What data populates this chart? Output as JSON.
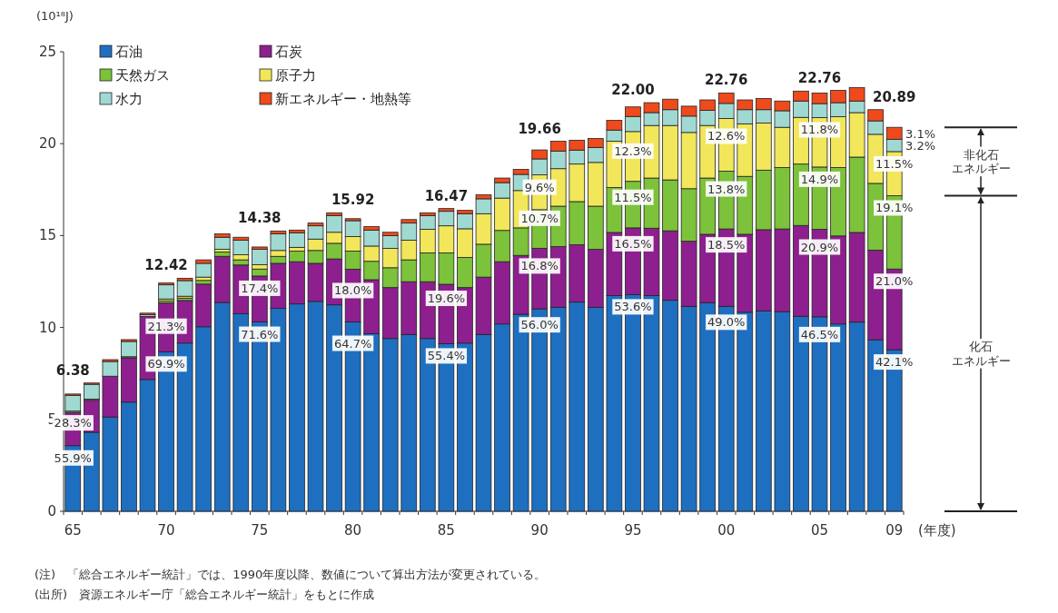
{
  "chart_data": {
    "type": "bar",
    "stacked": true,
    "ylabel": "(10¹⁸J)",
    "xlabel": "(年度)",
    "legend": "top left",
    "ylim": [
      0,
      25
    ],
    "yticks": [
      0,
      5,
      10,
      15,
      20,
      25
    ],
    "categories": [
      "65",
      null,
      null,
      null,
      null,
      "70",
      null,
      null,
      null,
      null,
      "75",
      null,
      null,
      null,
      null,
      "80",
      null,
      null,
      null,
      null,
      "85",
      null,
      null,
      null,
      null,
      "90",
      null,
      null,
      null,
      null,
      "95",
      null,
      null,
      null,
      null,
      "00",
      null,
      null,
      null,
      null,
      "05",
      null,
      null,
      null,
      "09"
    ],
    "series": [
      {
        "name": "石油",
        "color": "#1f6fc0",
        "values": [
          3.57,
          4.3,
          5.13,
          5.94,
          7.17,
          8.68,
          9.15,
          10.04,
          11.36,
          10.75,
          10.3,
          11.04,
          11.28,
          11.42,
          11.23,
          10.3,
          9.66,
          9.4,
          9.62,
          9.4,
          9.12,
          9.15,
          9.62,
          10.19,
          10.72,
          11.01,
          11.1,
          11.38,
          11.1,
          11.73,
          11.79,
          11.73,
          11.48,
          11.15,
          11.35,
          11.15,
          10.83,
          10.9,
          10.86,
          10.61,
          10.58,
          10.19,
          10.29,
          9.33,
          8.79
        ]
      },
      {
        "name": "石炭",
        "color": "#8e1f8e",
        "values": [
          1.81,
          1.74,
          2.22,
          2.41,
          3.43,
          2.65,
          2.32,
          2.32,
          2.51,
          2.65,
          2.5,
          2.45,
          2.3,
          2.07,
          2.5,
          2.87,
          2.94,
          2.77,
          2.87,
          3.09,
          3.23,
          3.02,
          3.12,
          3.39,
          3.2,
          3.3,
          3.3,
          3.12,
          3.15,
          3.44,
          3.63,
          3.67,
          3.78,
          3.54,
          3.72,
          4.21,
          4.24,
          4.42,
          4.5,
          4.94,
          4.76,
          4.79,
          4.88,
          4.88,
          4.39
        ]
      },
      {
        "name": "天然ガス",
        "color": "#7cc23a",
        "values": [
          0.07,
          0.06,
          null,
          0.06,
          null,
          0.12,
          0.13,
          0.2,
          0.24,
          0.28,
          0.38,
          0.38,
          0.57,
          0.7,
          0.85,
          0.99,
          1.0,
          1.08,
          1.19,
          1.57,
          1.71,
          1.64,
          1.79,
          1.7,
          1.5,
          2.1,
          2.2,
          2.35,
          2.35,
          2.44,
          2.53,
          2.73,
          2.77,
          2.86,
          3.06,
          3.14,
          3.15,
          3.24,
          3.34,
          3.34,
          3.39,
          3.72,
          4.1,
          3.63,
          3.99
        ]
      },
      {
        "name": "原子力",
        "color": "#f2e65a",
        "values": [
          0,
          0,
          0,
          0,
          null,
          0.1,
          0.1,
          0.18,
          0.14,
          0.28,
          0.24,
          0.32,
          0.21,
          0.62,
          0.6,
          0.79,
          0.83,
          1.05,
          1.07,
          1.28,
          1.47,
          1.56,
          1.66,
          1.76,
          2.03,
          1.89,
          2.04,
          2.04,
          2.38,
          2.52,
          2.71,
          2.86,
          2.96,
          3.06,
          2.86,
          2.87,
          2.86,
          2.56,
          2.19,
          2.54,
          2.69,
          2.77,
          2.42,
          2.67,
          2.4
        ]
      },
      {
        "name": "水力",
        "color": "#9fd9d2",
        "values": [
          0.86,
          0.81,
          0.8,
          0.83,
          0.1,
          0.77,
          0.85,
          0.75,
          0.66,
          0.79,
          0.83,
          0.9,
          0.79,
          0.72,
          0.91,
          0.86,
          0.87,
          0.69,
          0.93,
          0.75,
          0.79,
          0.82,
          0.81,
          0.84,
          0.88,
          0.87,
          0.96,
          0.76,
          0.81,
          0.61,
          0.82,
          0.7,
          0.86,
          0.89,
          0.82,
          0.82,
          0.77,
          0.73,
          0.9,
          0.89,
          0.76,
          0.76,
          0.63,
          0.73,
          0.67
        ]
      },
      {
        "name": "新エネルギー・地熱等",
        "color": "#ef4a1c",
        "values": [
          0.07,
          0.07,
          0.1,
          0.1,
          0.08,
          0.1,
          0.13,
          0.19,
          0.18,
          0.16,
          0.13,
          0.16,
          0.15,
          0.15,
          0.15,
          0.11,
          0.19,
          0.19,
          0.19,
          0.15,
          0.15,
          0.18,
          0.22,
          0.25,
          0.27,
          0.49,
          0.53,
          0.54,
          0.49,
          0.53,
          0.52,
          0.54,
          0.57,
          0.54,
          0.57,
          0.57,
          0.53,
          0.61,
          0.53,
          0.54,
          0.58,
          0.67,
          0.73,
          0.61,
          0.65
        ]
      }
    ],
    "totals": [
      "6.38",
      null,
      null,
      null,
      null,
      "12.42",
      null,
      null,
      null,
      null,
      "14.38",
      null,
      null,
      null,
      null,
      "15.92",
      null,
      null,
      null,
      null,
      "16.47",
      null,
      null,
      null,
      null,
      "19.66",
      null,
      null,
      null,
      null,
      "22.00",
      null,
      null,
      null,
      null,
      "22.76",
      null,
      null,
      null,
      null,
      "22.76",
      null,
      null,
      null,
      "20.89"
    ],
    "annotations": [
      "非化石エネルギー",
      "化石エネルギー",
      "(注)　「総合エネルギー統計」では、1990年度以降、数値について算出方法が変更されている。",
      "(出所)　資源エネルギー庁「総合エネルギー統計」をもとに作成",
      {
        "text": "55.9%",
        "x": "65",
        "y": 3.57
      },
      {
        "text": "28.3%",
        "x": "65",
        "y": 5.38
      },
      {
        "text": "69.9%",
        "x": "70",
        "y": 8.68
      },
      {
        "text": "21.3%",
        "x": "70",
        "y": 11.33
      },
      {
        "text": "71.6%",
        "x": "75",
        "y": 10.3
      },
      {
        "text": "17.4%",
        "x": "75",
        "y": 12.8
      },
      {
        "text": "64.7%",
        "x": "80",
        "y": 10.3
      },
      {
        "text": "18.0%",
        "x": "80",
        "y": 13.17
      },
      {
        "text": "55.4%",
        "x": "85",
        "y": 9.12
      },
      {
        "text": "19.6%",
        "x": "85",
        "y": 12.35
      },
      {
        "text": "56.0%",
        "x": "90",
        "y": 11.01
      },
      {
        "text": "16.8%",
        "x": "90",
        "y": 14.31
      },
      {
        "text": "10.7%",
        "x": "90",
        "y": 16.41
      },
      {
        "text": "9.6%",
        "x": "90",
        "y": 18.3
      },
      {
        "text": "53.6%",
        "x": "95",
        "y": 11.79
      },
      {
        "text": "16.5%",
        "x": "95",
        "y": 15.42
      },
      {
        "text": "11.5%",
        "x": "95",
        "y": 17.95
      },
      {
        "text": "12.3%",
        "x": "95",
        "y": 20.66
      },
      {
        "text": "49.0%",
        "x": "00",
        "y": 11.15
      },
      {
        "text": "18.5%",
        "x": "00",
        "y": 15.36
      },
      {
        "text": "13.8%",
        "x": "00",
        "y": 18.5
      },
      {
        "text": "12.6%",
        "x": "00",
        "y": 21.37
      },
      {
        "text": "46.5%",
        "x": "05",
        "y": 10.58
      },
      {
        "text": "20.9%",
        "x": "05",
        "y": 15.34
      },
      {
        "text": "14.9%",
        "x": "05",
        "y": 18.73
      },
      {
        "text": "11.8%",
        "x": "05",
        "y": 21.42
      },
      {
        "text": "42.1%",
        "x": "09",
        "y": 8.79
      },
      {
        "text": "21.0%",
        "x": "09",
        "y": 13.18
      },
      {
        "text": "19.1%",
        "x": "09",
        "y": 17.17
      },
      {
        "text": "11.5%",
        "x": "09",
        "y": 19.57
      },
      {
        "text": "3.2%",
        "x": "09",
        "y": 20.24
      },
      {
        "text": "3.1%",
        "x": "09",
        "y": 20.89
      }
    ]
  }
}
